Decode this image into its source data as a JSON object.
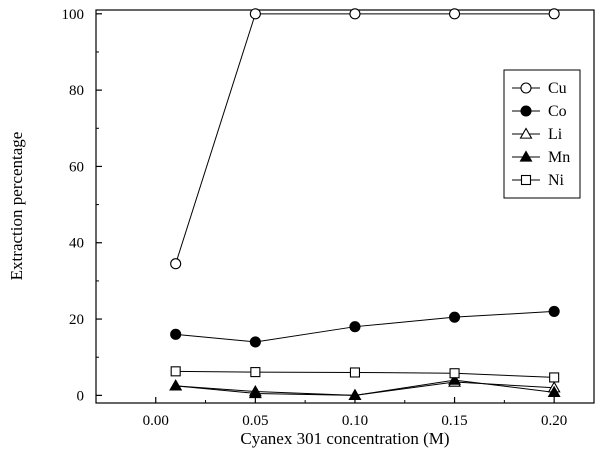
{
  "chart_data": {
    "type": "line",
    "title": "",
    "xlabel": "Cyanex 301 concentration (M)",
    "ylabel": "Extraction percentage",
    "xlim": [
      -0.03,
      0.22
    ],
    "ylim": [
      -2,
      101
    ],
    "xticks": [
      0.0,
      0.05,
      0.1,
      0.15,
      0.2
    ],
    "xtick_labels": [
      "0.00",
      "0.05",
      "0.10",
      "0.15",
      "0.20"
    ],
    "yticks": [
      0,
      20,
      40,
      60,
      80,
      100
    ],
    "ytick_labels": [
      "0",
      "20",
      "40",
      "60",
      "80",
      "100"
    ],
    "grid": false,
    "legend_position": "top-right",
    "x": [
      0.01,
      0.05,
      0.1,
      0.15,
      0.2
    ],
    "series": [
      {
        "name": "Cu",
        "marker": "circle",
        "filled": false,
        "values": [
          34.5,
          100,
          100,
          100,
          100
        ]
      },
      {
        "name": "Co",
        "marker": "circle",
        "filled": true,
        "values": [
          16,
          14,
          18,
          20.5,
          22
        ]
      },
      {
        "name": "Li",
        "marker": "triangle",
        "filled": false,
        "values": [
          2.5,
          1,
          0,
          3.5,
          2
        ]
      },
      {
        "name": "Mn",
        "marker": "triangle",
        "filled": true,
        "values": [
          2.5,
          0.5,
          0,
          4,
          0.8
        ]
      },
      {
        "name": "Ni",
        "marker": "square",
        "filled": false,
        "values": [
          6.3,
          6.1,
          6,
          5.8,
          4.7
        ]
      }
    ]
  }
}
